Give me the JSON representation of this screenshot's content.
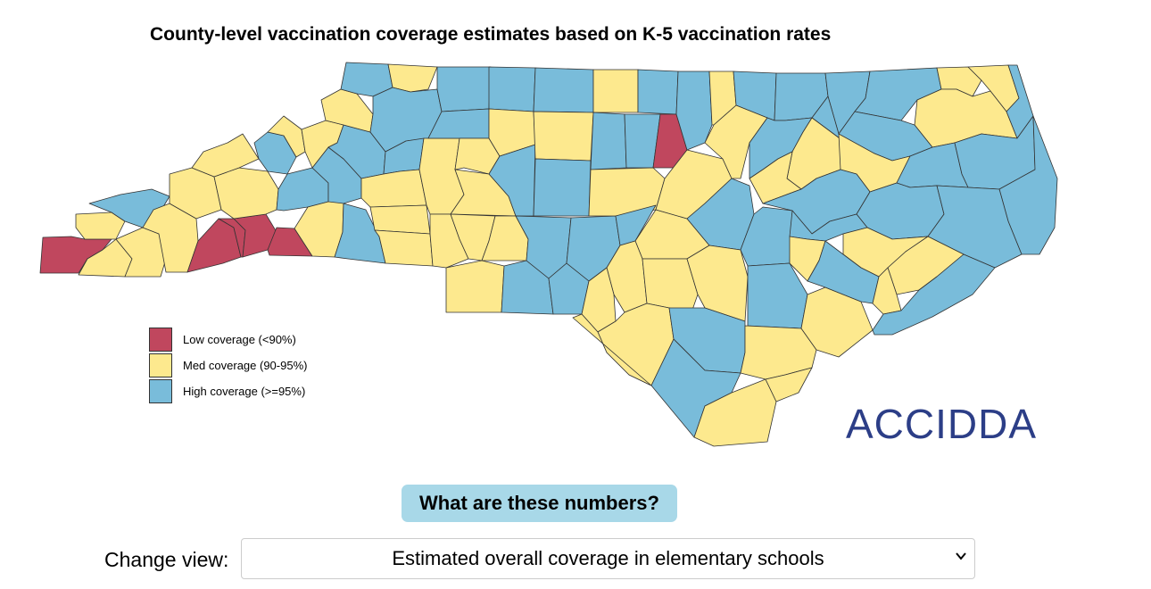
{
  "title": "County-level vaccination coverage estimates based on K-5 vaccination rates",
  "colors": {
    "low": "#c0475e",
    "med": "#fde98e",
    "high": "#79bcda",
    "button_bg": "#a8d8e8",
    "logo_text": "#2c3e87"
  },
  "legend": {
    "items": [
      {
        "key": "low",
        "label": "Low coverage (<90%)"
      },
      {
        "key": "med",
        "label": "Med coverage (90-95%)"
      },
      {
        "key": "high",
        "label": "High coverage (>=95%)"
      }
    ]
  },
  "logo": {
    "text": "ACCIDDA"
  },
  "info_button": {
    "label": "What are these numbers?"
  },
  "view": {
    "label": "Change view:",
    "selected": "Estimated overall coverage in elementary schools",
    "icon": "chevron-down-icon"
  }
}
